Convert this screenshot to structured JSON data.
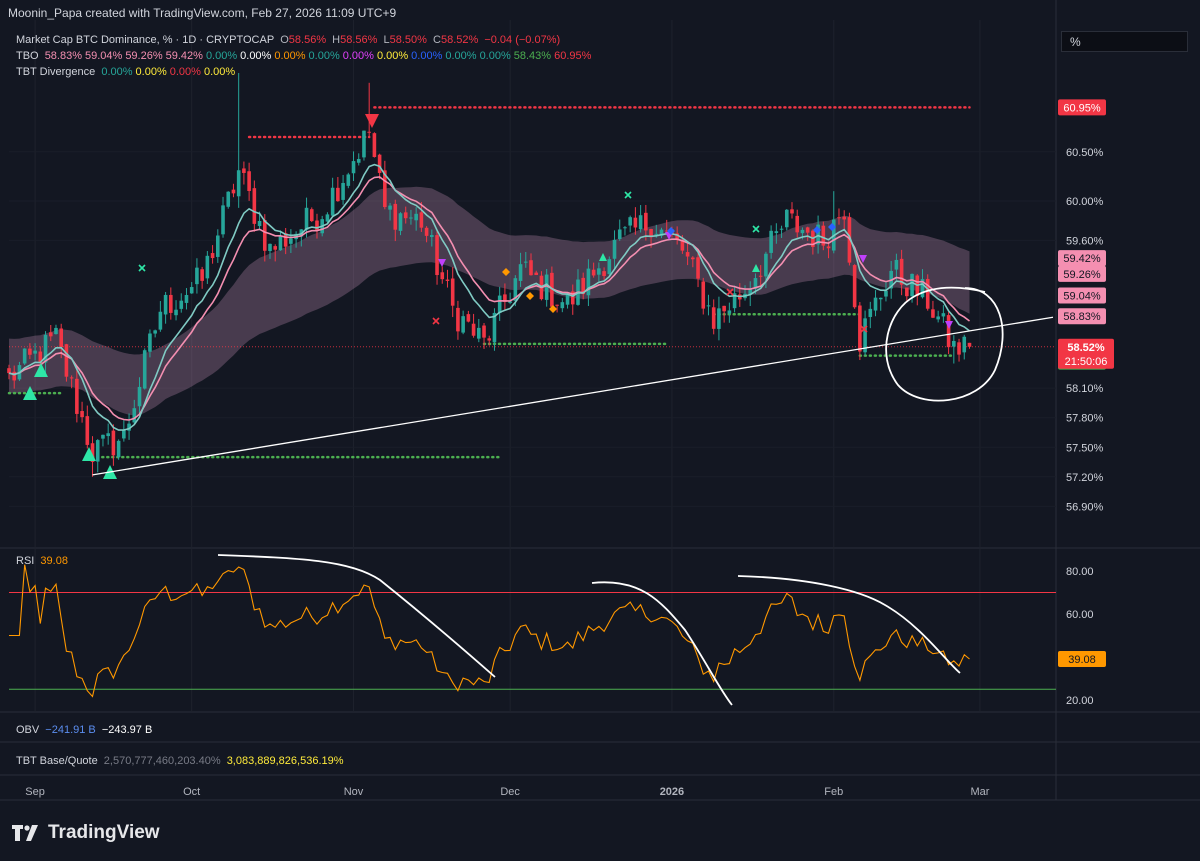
{
  "header": {
    "attribution": "Moonin_Papa created with TradingView.com, Feb 27, 2026 11:09 UTC+9"
  },
  "unit_selector": {
    "value": "%"
  },
  "legends": {
    "symbol": {
      "name": "Market Cap BTC Dominance, % · 1D · CRYPTOCAP",
      "open_label": "O",
      "open": "58.56%",
      "high_label": "H",
      "high": "58.56%",
      "low_label": "L",
      "low": "58.50%",
      "close_label": "C",
      "close": "58.52%",
      "change": "−0.04 (−0.07%)"
    },
    "tbo": {
      "name": "TBO",
      "values": [
        "58.83%",
        "59.04%",
        "59.26%",
        "59.42%",
        "0.00%",
        "0.00%",
        "0.00%",
        "0.00%",
        "0.00%",
        "0.00%",
        "0.00%",
        "0.00%",
        "0.00%",
        "58.43%",
        "60.95%"
      ],
      "colors": [
        "#f48fb1",
        "#f48fb1",
        "#f48fb1",
        "#f48fb1",
        "#26a69a",
        "#ffffff",
        "#ff9800",
        "#26a69a",
        "#e040fb",
        "#ffeb3b",
        "#2962ff",
        "#26a69a",
        "#26a69a",
        "#4caf50",
        "#f23645"
      ]
    },
    "tbt_divergence": {
      "name": "TBT Divergence",
      "values": [
        "0.00%",
        "0.00%",
        "0.00%",
        "0.00%"
      ],
      "colors": [
        "#26a69a",
        "#ffeb3b",
        "#f23645",
        "#ffeb3b"
      ]
    },
    "rsi": {
      "name": "RSI",
      "value": "39.08"
    },
    "obv": {
      "name": "OBV",
      "value1": "−241.91 B",
      "value2": "−243.97 B"
    },
    "tbt_base_quote": {
      "name": "TBT Base/Quote",
      "value1": "2,570,777,460,203.40%",
      "value2": "3,083,889,826,536.19%"
    }
  },
  "price_badges": [
    {
      "text": "60.95%",
      "price": 60.95,
      "color": "#f23645",
      "text_color": "#ffffff"
    },
    {
      "text": "59.42%",
      "price": 59.42,
      "color": "#f48fb1",
      "text_color": "#131722"
    },
    {
      "text": "59.26%",
      "price": 59.26,
      "color": "#f48fb1",
      "text_color": "#131722"
    },
    {
      "text": "59.04%",
      "price": 59.04,
      "color": "#f48fb1",
      "text_color": "#131722"
    },
    {
      "text": "58.83%",
      "price": 58.83,
      "color": "#f48fb1",
      "text_color": "#131722"
    },
    {
      "text": "58.43%",
      "price": 58.43,
      "color": "#4caf50",
      "text_color": "#131722"
    }
  ],
  "current_price_badge": {
    "price_text": "58.52%",
    "countdown": "21:50:06",
    "price": 58.52,
    "color": "#f23645"
  },
  "rsi_badge": {
    "text": "39.08",
    "value": 39.08,
    "color": "#ff9800"
  },
  "branding": {
    "name": "TradingView"
  },
  "chart_data": [
    {
      "type": "candlestick",
      "title": "Market Cap BTC Dominance, % · 1D · CRYPTOCAP",
      "x_labels": [
        "Sep",
        "Oct",
        "Nov",
        "Dec",
        "2026",
        "Feb",
        "Mar"
      ],
      "y_ticks": [
        "60.50%",
        "60.00%",
        "59.60%",
        "58.10%",
        "57.80%",
        "57.50%",
        "57.20%",
        "56.90%"
      ],
      "y_tick_values": [
        60.5,
        60.0,
        59.6,
        58.1,
        57.8,
        57.5,
        57.2,
        56.9
      ],
      "ylim": [
        56.8,
        61.4
      ],
      "series_summary": {
        "start_date": "2025-08-27",
        "end_date": "2026-02-27",
        "last_close": 58.52,
        "anchors": [
          [
            "2025-08-27",
            58.2
          ],
          [
            "2025-09-05",
            58.6
          ],
          [
            "2025-09-12",
            57.45
          ],
          [
            "2025-09-18",
            57.6
          ],
          [
            "2025-09-25",
            58.9
          ],
          [
            "2025-10-03",
            59.2
          ],
          [
            "2025-10-10",
            60.3
          ],
          [
            "2025-10-16",
            59.5
          ],
          [
            "2025-10-26",
            59.9
          ],
          [
            "2025-11-04",
            60.7
          ],
          [
            "2025-11-07",
            59.9
          ],
          [
            "2025-11-14",
            59.8
          ],
          [
            "2025-11-20",
            58.9
          ],
          [
            "2025-11-26",
            58.55
          ],
          [
            "2025-12-03",
            59.3
          ],
          [
            "2025-12-12",
            58.95
          ],
          [
            "2025-12-22",
            59.6
          ],
          [
            "2025-12-28",
            59.8
          ],
          [
            "2026-01-03",
            59.5
          ],
          [
            "2026-01-09",
            58.8
          ],
          [
            "2026-01-15",
            59.1
          ],
          [
            "2026-01-23",
            59.8
          ],
          [
            "2026-01-30",
            59.6
          ],
          [
            "2026-02-03",
            59.95
          ],
          [
            "2026-02-06",
            58.6
          ],
          [
            "2026-02-12",
            59.3
          ],
          [
            "2026-02-19",
            59.0
          ],
          [
            "2026-02-24",
            58.5
          ],
          [
            "2026-02-27",
            58.52
          ]
        ]
      },
      "overlays": {
        "fast_ma_color": "#f48fb1",
        "slow_ma_color": "#80cbc4",
        "cloud_color": "#d39bc3",
        "support_lines": [
          {
            "from": "2025-08-27",
            "to": "2025-09-06",
            "price": 58.05,
            "color": "#4caf50"
          },
          {
            "from": "2025-09-11",
            "to": "2025-11-29",
            "price": 57.4,
            "color": "#4caf50"
          },
          {
            "from": "2025-11-26",
            "to": "2025-12-31",
            "price": 58.55,
            "color": "#4caf50"
          },
          {
            "from": "2026-01-09",
            "to": "2026-02-06",
            "price": 58.85,
            "color": "#4caf50"
          },
          {
            "from": "2026-02-06",
            "to": "2026-02-24",
            "price": 58.43,
            "color": "#4caf50"
          }
        ],
        "resistance_lines": [
          {
            "from": "2025-10-12",
            "to": "2025-11-04",
            "price": 60.65,
            "color": "#f23645"
          },
          {
            "from": "2025-11-05",
            "to": "2026-02-27",
            "price": 60.95,
            "color": "#f23645"
          }
        ],
        "trendline": {
          "from": [
            "2025-09-12",
            57.22
          ],
          "to": [
            "2026-03-15",
            58.82
          ],
          "color": "#ffffff"
        }
      }
    },
    {
      "type": "line",
      "title": "RSI",
      "y_ticks": [
        "80.00",
        "60.00",
        "20.00"
      ],
      "y_tick_values": [
        80,
        60,
        20
      ],
      "ylim": [
        12,
        88
      ],
      "upper_band": 70,
      "lower_band": 25,
      "last_value": 39.08
    }
  ]
}
